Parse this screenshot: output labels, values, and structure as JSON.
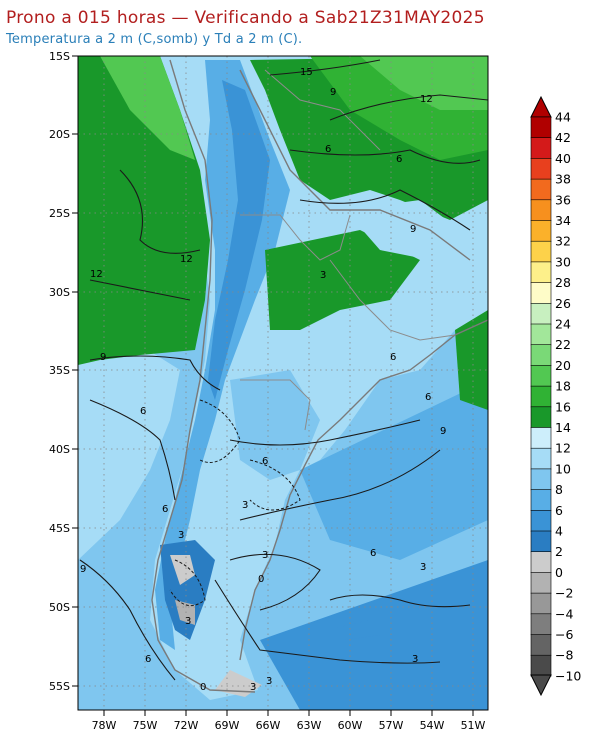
{
  "header": {
    "title": "Prono a 015 horas — Verificando a Sab21Z31MAY2025",
    "subtitle": "Temperatura a 2 m (C,somb) y Td a 2 m (C)."
  },
  "map": {
    "lat_labels": [
      "15S",
      "20S",
      "25S",
      "30S",
      "35S",
      "40S",
      "45S",
      "50S",
      "55S"
    ],
    "lon_labels": [
      "78W",
      "75W",
      "72W",
      "69W",
      "66W",
      "63W",
      "60W",
      "57W",
      "54W",
      "51W"
    ],
    "contour_labels": [
      "15",
      "12",
      "9",
      "6",
      "12",
      "9",
      "3",
      "6",
      "12",
      "9",
      "6",
      "6",
      "6",
      "9",
      "6",
      "3",
      "6",
      "3",
      "3",
      "6",
      "9",
      "3",
      "0",
      "3",
      "3",
      "6",
      "3",
      "0",
      "3"
    ]
  },
  "colorbar": {
    "labels": [
      "44",
      "42",
      "40",
      "38",
      "36",
      "34",
      "32",
      "30",
      "28",
      "26",
      "24",
      "22",
      "20",
      "18",
      "16",
      "14",
      "12",
      "10",
      "8",
      "6",
      "4",
      "2",
      "0",
      "−2",
      "−4",
      "−6",
      "−8",
      "−10"
    ],
    "colors": [
      "#b00000",
      "#d41a1a",
      "#e8401e",
      "#f26a1e",
      "#f7901e",
      "#fbb12a",
      "#fdd24a",
      "#fdf08a",
      "#fefcc8",
      "#c8f0c0",
      "#a2e79a",
      "#7ad977",
      "#52c852",
      "#30b234",
      "#19982a",
      "#cdeefb",
      "#a6dcf6",
      "#7fc6ef",
      "#58aee6",
      "#3a93d6",
      "#2a7dc2",
      "#cccccc",
      "#b2b2b2",
      "#989898",
      "#7e7e7e",
      "#646464",
      "#4a4a4a"
    ]
  }
}
